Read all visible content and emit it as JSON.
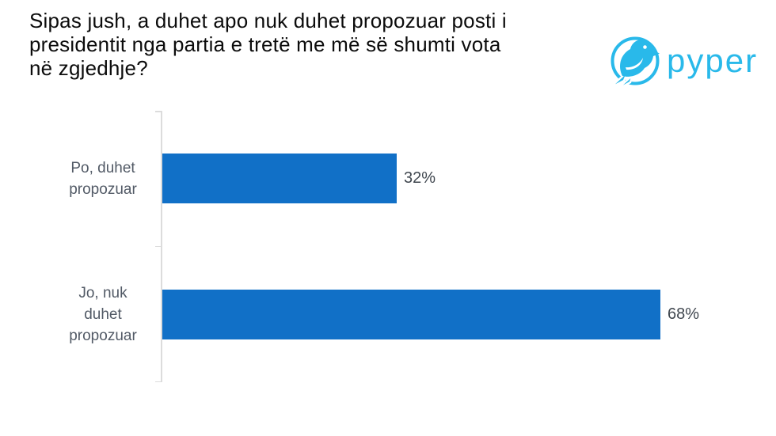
{
  "title": "Sipas jush, a duhet apo nuk duhet propozuar posti i presidentit nga partia e tretë me më së shumti vota në zgjedhje?",
  "title_lines": [
    "Sipas jush, a duhet apo nuk duhet propozuar posti i",
    "presidentit nga partia e tretë me më së shumti vota",
    "në zgjedhje?"
  ],
  "logo": {
    "text": "pyper",
    "color": "#29b9ea",
    "icon": "bird-in-circle-icon"
  },
  "chart_data": {
    "type": "bar",
    "orientation": "horizontal",
    "title": "Sipas jush, a duhet apo nuk duhet propozuar posti i presidentit nga partia e tretë me më së shumti vota në zgjedhje?",
    "categories": [
      "Po, duhet propozuar",
      "Jo, nuk duhet propozuar"
    ],
    "category_lines": [
      [
        "Po, duhet",
        "propozuar"
      ],
      [
        "Jo, nuk",
        "duhet",
        "propozuar"
      ]
    ],
    "values": [
      32,
      68
    ],
    "value_labels": [
      "32%",
      "68%"
    ],
    "xlim": [
      0,
      80
    ],
    "grid": false,
    "legend": false,
    "bar_color": "#1170c7",
    "axis_color": "#dcdcdc",
    "category_label_color": "#525a66",
    "value_label_color": "#40474f"
  }
}
